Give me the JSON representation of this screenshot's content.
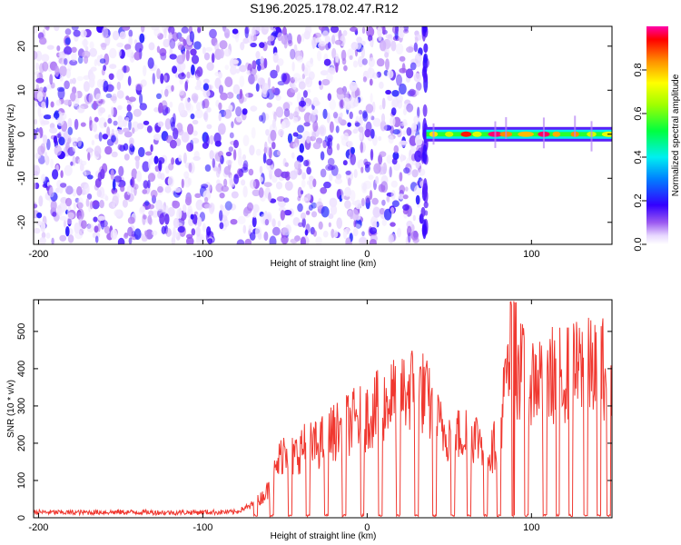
{
  "title": "S196.2025.178.02.47.R12",
  "chart_data": [
    {
      "type": "heatmap",
      "xlabel": "Height of straight line (km)",
      "ylabel": "Frequency (Hz)",
      "xlim": [
        -203,
        149
      ],
      "ylim": [
        -25,
        24.5
      ],
      "x_ticks": [
        "-200",
        "-100",
        "0",
        "100"
      ],
      "y_ticks": [
        "-20",
        "-10",
        "0",
        "10",
        "20"
      ],
      "colorbar": {
        "label": "Normalized spectral amplitude",
        "range": [
          0.0,
          1.0
        ],
        "ticks": [
          "0.0",
          "0.2",
          "0.4",
          "0.6",
          "0.8"
        ]
      },
      "regions": [
        {
          "description": "broadband noise",
          "x_range": [
            -203,
            36
          ],
          "y_range": [
            -25,
            24.5
          ],
          "typical_amplitude": 0.1
        },
        {
          "description": "carrier signal",
          "x_range": [
            36,
            149
          ],
          "frequency": 0,
          "typical_amplitude": 0.8,
          "peak_amplitude": 1.0
        }
      ]
    },
    {
      "type": "line",
      "xlabel": "Height of straight line (km)",
      "ylabel": "SNR (10 * v/v)",
      "xlim": [
        -203,
        149
      ],
      "ylim": [
        0,
        585
      ],
      "x_ticks": [
        "-200",
        "-100",
        "0",
        "100"
      ],
      "y_ticks": [
        "0",
        "100",
        "200",
        "300",
        "400",
        "500"
      ],
      "series": [
        {
          "color": "#f03830",
          "x": [
            -200,
            -180,
            -160,
            -140,
            -120,
            -100,
            -80,
            -75,
            -70,
            -65,
            -60,
            -55,
            -50,
            -45,
            -40,
            -30,
            -20,
            -10,
            0,
            5,
            10,
            20,
            25,
            30,
            35,
            40,
            45,
            50,
            55,
            60,
            65,
            70,
            75,
            80,
            85,
            90,
            95,
            100,
            105,
            110,
            120,
            130,
            140,
            149
          ],
          "values": [
            15,
            14,
            15,
            15,
            14,
            15,
            15,
            25,
            40,
            60,
            90,
            160,
            230,
            190,
            220,
            230,
            270,
            300,
            320,
            340,
            360,
            390,
            405,
            410,
            390,
            330,
            280,
            265,
            260,
            270,
            260,
            245,
            200,
            260,
            440,
            480,
            455,
            435,
            445,
            450,
            455,
            465,
            475,
            470
          ]
        }
      ],
      "dropouts_x": [
        -68,
        -58,
        -47,
        -36,
        -25,
        -14,
        -3,
        8,
        19,
        30,
        41,
        52,
        62,
        72,
        80,
        89,
        97,
        108,
        116,
        124,
        133,
        141,
        147
      ]
    }
  ]
}
